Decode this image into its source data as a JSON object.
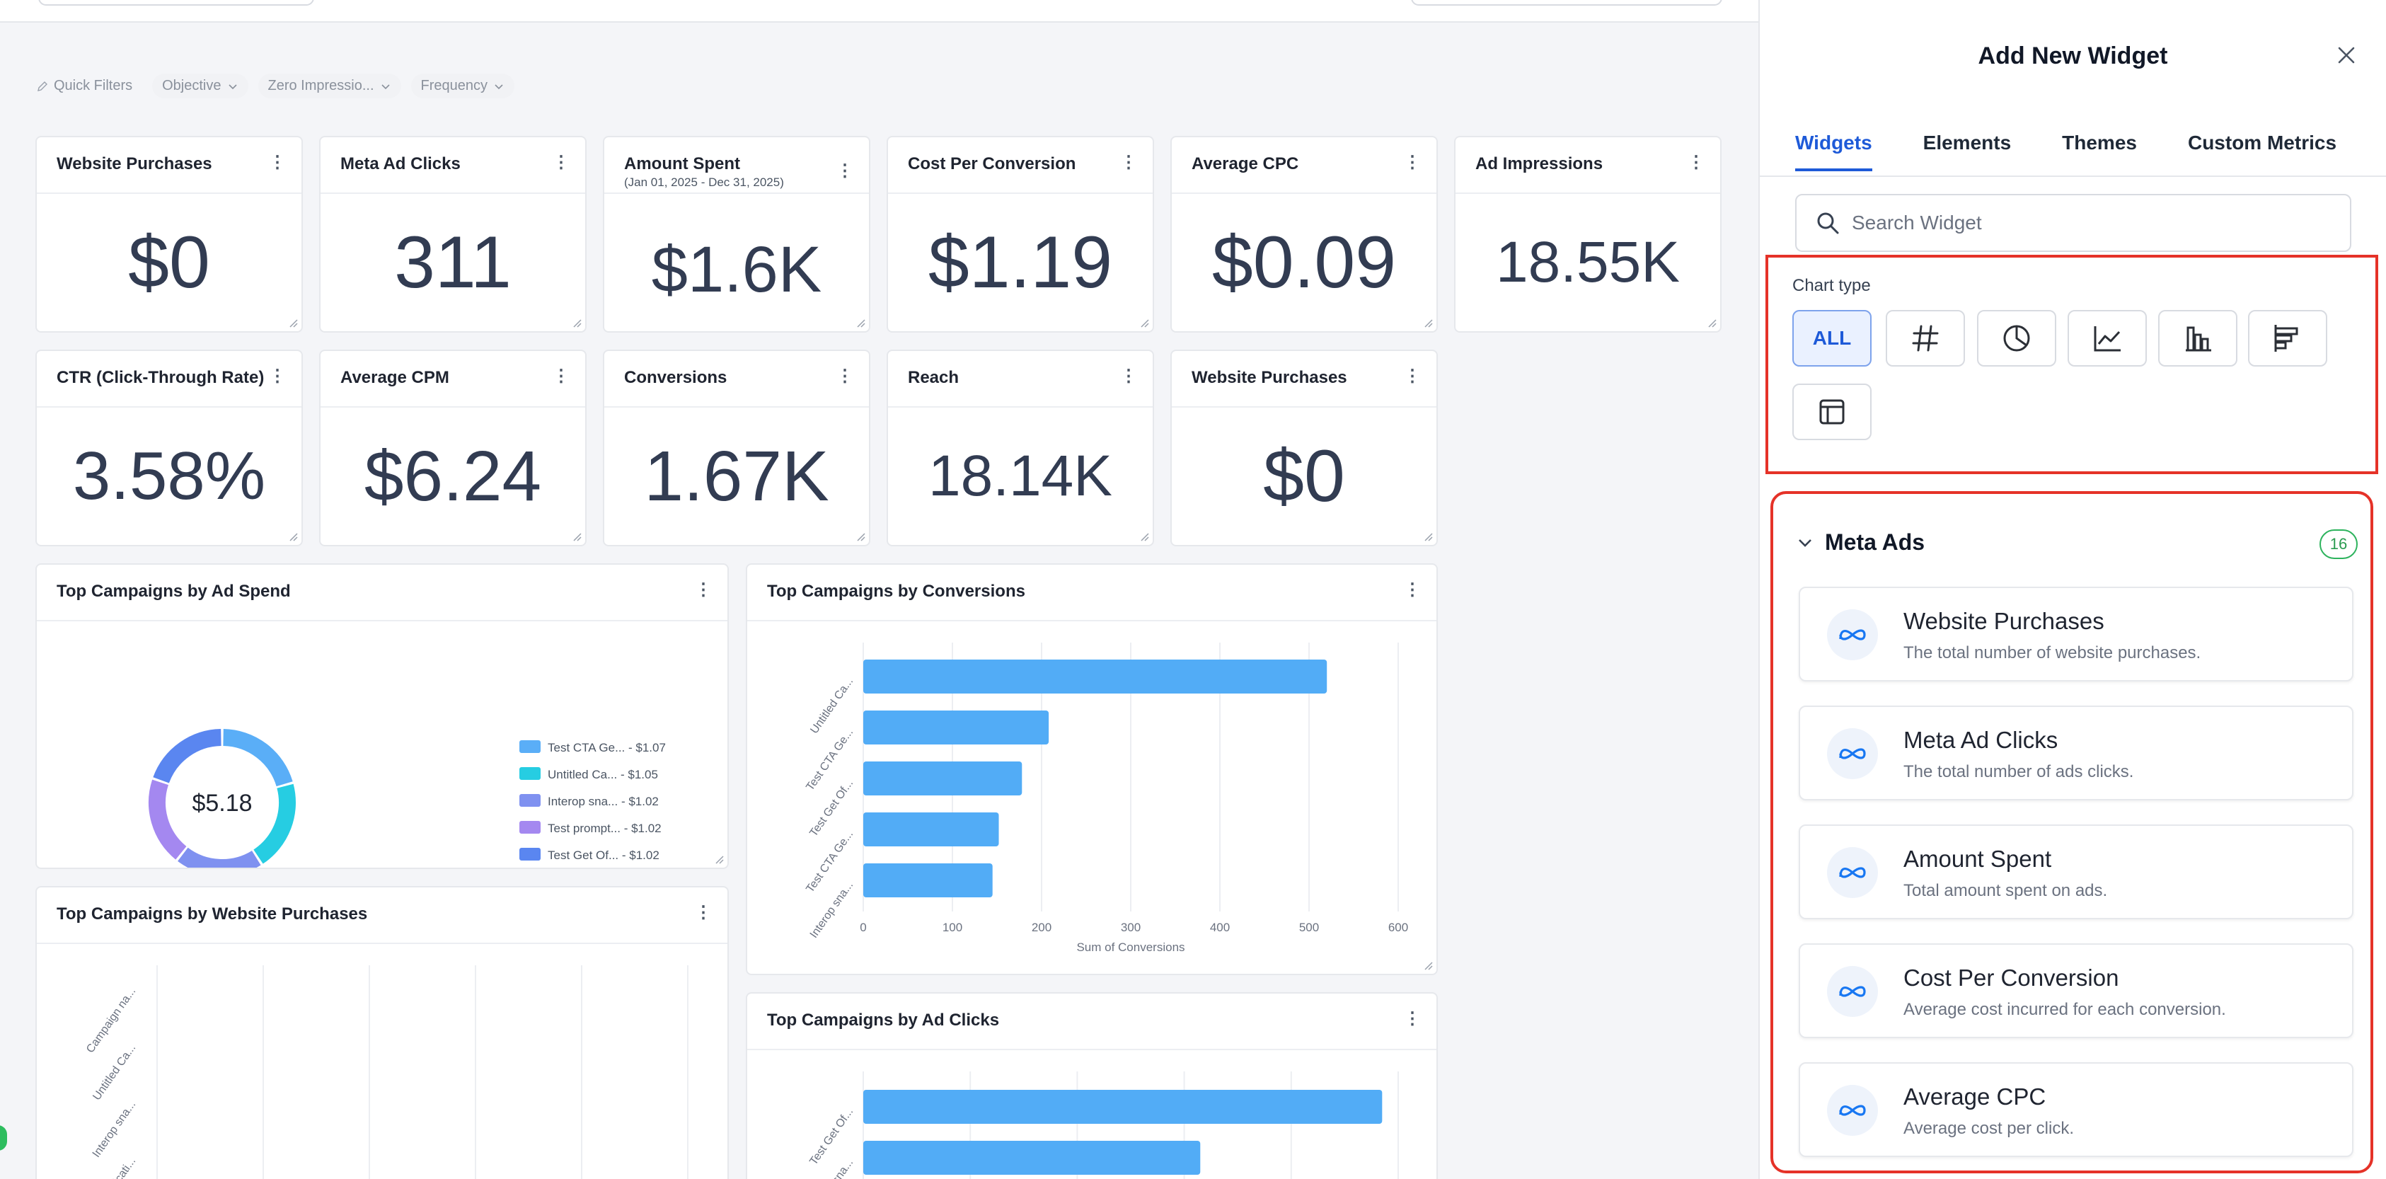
{
  "quick_filters": {
    "label": "Quick Filters",
    "chips": [
      "Objective",
      "Zero Impressio...",
      "Frequency"
    ]
  },
  "kpis": [
    {
      "title": "Website Purchases",
      "value": "$0"
    },
    {
      "title": "Meta Ad Clicks",
      "value": "311"
    },
    {
      "title": "Amount Spent",
      "subtitle": "(Jan 01, 2025 - Dec 31, 2025)",
      "value": "$1.6K"
    },
    {
      "title": "Cost Per Conversion",
      "value": "$1.19"
    },
    {
      "title": "Average CPC",
      "value": "$0.09"
    },
    {
      "title": "Ad Impressions",
      "value": "18.55K"
    },
    {
      "title": "CTR (Click-Through Rate)",
      "value": "3.58%"
    },
    {
      "title": "Average CPM",
      "value": "$6.24"
    },
    {
      "title": "Conversions",
      "value": "1.67K"
    },
    {
      "title": "Reach",
      "value": "18.14K"
    },
    {
      "title": "Website Purchases",
      "value": "$0"
    }
  ],
  "charts": {
    "ad_spend": {
      "title": "Top Campaigns by Ad Spend"
    },
    "conversions": {
      "title": "Top Campaigns by Conversions"
    },
    "website_purchases": {
      "title": "Top Campaigns by Website Purchases"
    },
    "ad_clicks": {
      "title": "Top Campaigns by Ad Clicks"
    }
  },
  "chart_data": [
    {
      "type": "pie",
      "title": "Top Campaigns by Ad Spend",
      "center_label": "$5.18",
      "labels": [
        "Test CTA Ge... - $1.07",
        "Untitled Ca... - $1.05",
        "Interop sna... - $1.02",
        "Test prompt... - $1.02",
        "Test Get Of... - $1.02"
      ],
      "values": [
        1.07,
        1.05,
        1.02,
        1.02,
        1.02
      ],
      "colors": [
        "#5aaef7",
        "#26cde2",
        "#7f91f0",
        "#a488f0",
        "#5a86f0"
      ]
    },
    {
      "type": "bar",
      "orientation": "horizontal",
      "title": "Top Campaigns by Conversions",
      "categories": [
        "Untitled Ca...",
        "Test CTA Ge...",
        "Test Get Of...",
        "Test CTA Ge...",
        "Interop sna..."
      ],
      "values": [
        520,
        208,
        178,
        152,
        145
      ],
      "xlabel": "Sum of Conversions",
      "xticks": [
        "0",
        "100",
        "200",
        "300",
        "400",
        "500",
        "600"
      ],
      "xlim": [
        0,
        600
      ],
      "color": "#52acf6"
    },
    {
      "type": "bar",
      "orientation": "horizontal",
      "title": "Top Campaigns by Website Purchases",
      "categories": [
        "Campaign na...",
        "Untitled Ca...",
        "Interop sna...",
        "Unticati..."
      ],
      "values": [
        0,
        0,
        0,
        0
      ]
    },
    {
      "type": "bar",
      "orientation": "horizontal",
      "title": "Top Campaigns by Ad Clicks",
      "categories": [
        "Test Get Of...",
        "sna..."
      ],
      "values": [
        97,
        63
      ],
      "xlim": [
        0,
        100
      ],
      "color": "#52acf6"
    }
  ],
  "panel": {
    "title": "Add New Widget",
    "tabs": [
      "Widgets",
      "Elements",
      "Themes",
      "Custom Metrics"
    ],
    "search_placeholder": "Search Widget",
    "chart_type_label": "Chart type",
    "chart_type_all": "ALL",
    "group_name": "Meta Ads",
    "group_count": "16",
    "items": [
      {
        "title": "Website Purchases",
        "desc": "The total number of website purchases."
      },
      {
        "title": "Meta Ad Clicks",
        "desc": "The total number of ads clicks."
      },
      {
        "title": "Amount Spent",
        "desc": "Total amount spent on ads."
      },
      {
        "title": "Cost Per Conversion",
        "desc": "Average cost incurred for each conversion."
      },
      {
        "title": "Average CPC",
        "desc": "Average cost per click."
      }
    ]
  }
}
